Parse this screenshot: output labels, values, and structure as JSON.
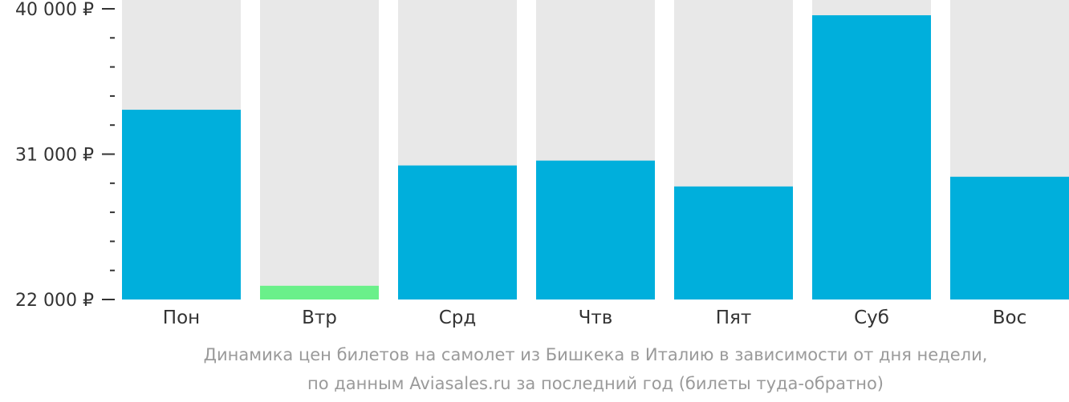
{
  "chart_data": {
    "type": "bar",
    "categories": [
      "Пон",
      "Втр",
      "Срд",
      "Чтв",
      "Пят",
      "Суб",
      "Вос"
    ],
    "values": [
      33750,
      22850,
      30300,
      30600,
      29000,
      39600,
      29600
    ],
    "highlight_index": 1,
    "ylim": [
      22000,
      41000
    ],
    "yticks_major": [
      22000,
      31000,
      40000
    ],
    "ytick_labels": [
      "22 000 ₽",
      "31 000 ₽",
      "40 000 ₽"
    ],
    "minor_tick_step": 1800,
    "colors": {
      "bar": "#00afdc",
      "highlight": "#6af08a",
      "background_column": "#e8e8e8",
      "axis": "#333333",
      "tick_label": "#333333"
    },
    "caption_line1": "Динамика цен билетов на самолет из Бишкека в Италию в зависимости от дня недели,",
    "caption_line2": "по данным Aviasales.ru за последний год (билеты туда-обратно)"
  }
}
